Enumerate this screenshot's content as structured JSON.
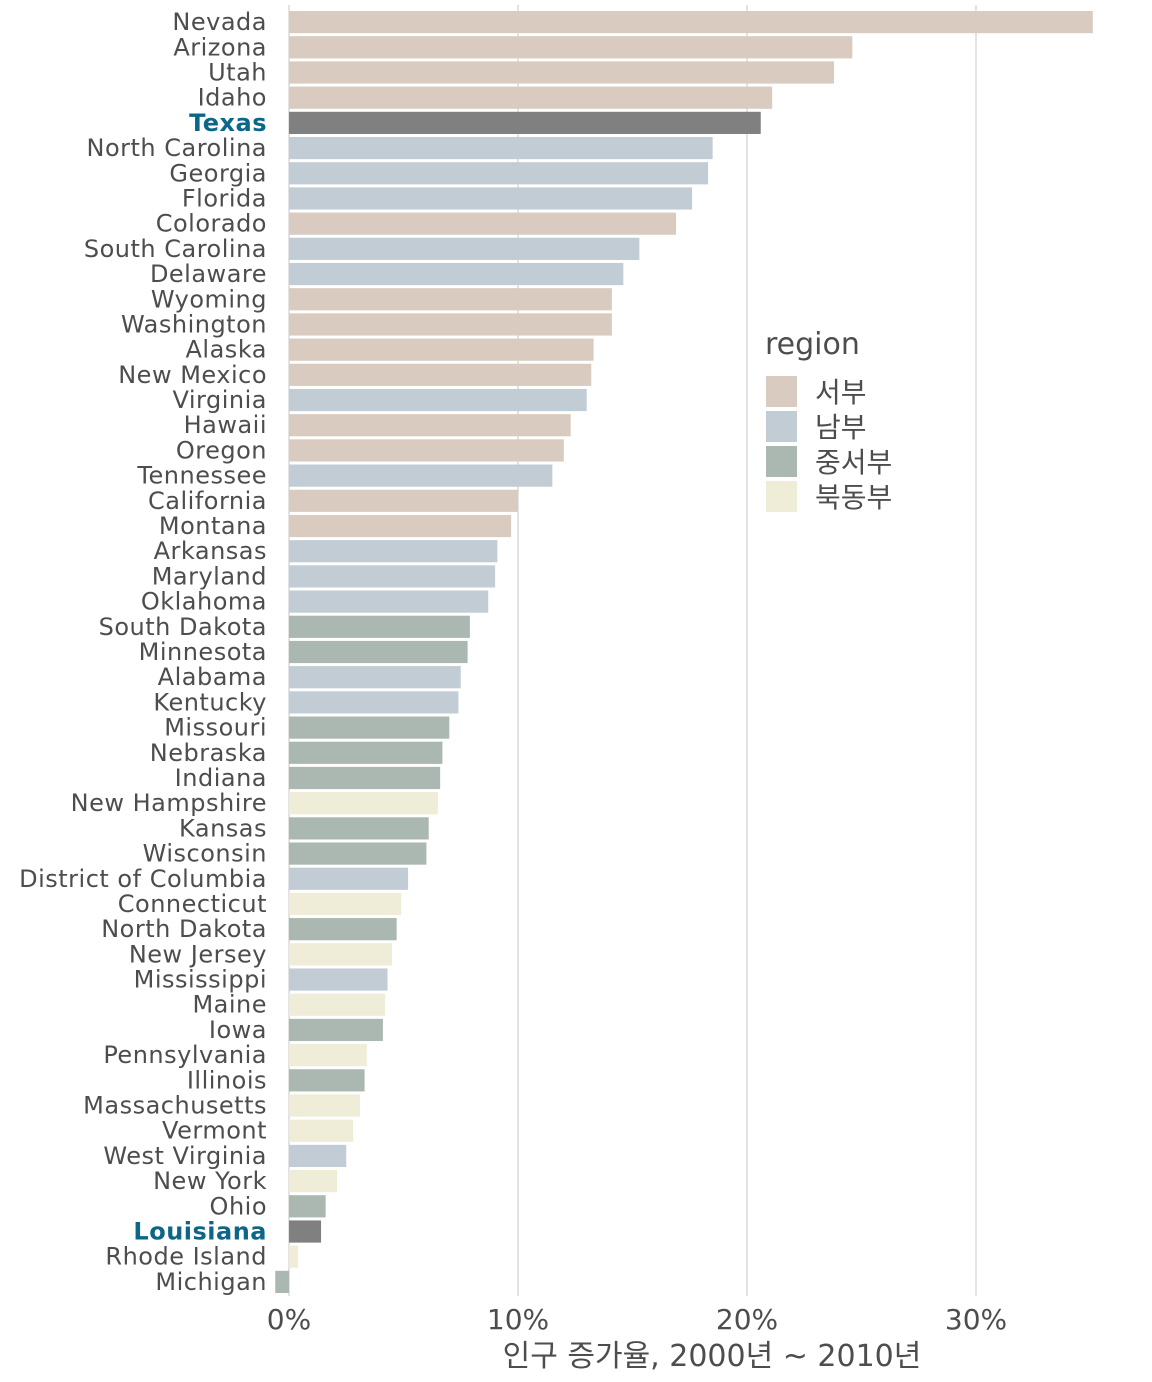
{
  "chart_data": {
    "type": "bar",
    "orientation": "horizontal",
    "xlabel": "인구 증가율, 2000년 ~ 2010년",
    "ylabel": "",
    "xlim": [
      -0.5,
      37
    ],
    "xticks": [
      0,
      10,
      20,
      30
    ],
    "xtick_labels": [
      "0%",
      "10%",
      "20%",
      "30%"
    ],
    "grid": "vertical major lines",
    "legend": {
      "title": "region",
      "placement": "right",
      "entries": [
        {
          "key": "west",
          "label": "서부",
          "color": "#d9cbbf"
        },
        {
          "key": "south",
          "label": "남부",
          "color": "#c2ccd4"
        },
        {
          "key": "midwest",
          "label": "중서부",
          "color": "#aab8b1"
        },
        {
          "key": "northeast",
          "label": "북동부",
          "color": "#efecd8"
        }
      ]
    },
    "highlight_color": "#808080",
    "highlight_label_color": "#0b6688",
    "bars": [
      {
        "state": "Nevada",
        "value": 35.1,
        "region": "west"
      },
      {
        "state": "Arizona",
        "value": 24.6,
        "region": "west"
      },
      {
        "state": "Utah",
        "value": 23.8,
        "region": "west"
      },
      {
        "state": "Idaho",
        "value": 21.1,
        "region": "west"
      },
      {
        "state": "Texas",
        "value": 20.6,
        "region": "south",
        "highlight": true
      },
      {
        "state": "North Carolina",
        "value": 18.5,
        "region": "south"
      },
      {
        "state": "Georgia",
        "value": 18.3,
        "region": "south"
      },
      {
        "state": "Florida",
        "value": 17.6,
        "region": "south"
      },
      {
        "state": "Colorado",
        "value": 16.9,
        "region": "west"
      },
      {
        "state": "South Carolina",
        "value": 15.3,
        "region": "south"
      },
      {
        "state": "Delaware",
        "value": 14.6,
        "region": "south"
      },
      {
        "state": "Wyoming",
        "value": 14.1,
        "region": "west"
      },
      {
        "state": "Washington",
        "value": 14.1,
        "region": "west"
      },
      {
        "state": "Alaska",
        "value": 13.3,
        "region": "west"
      },
      {
        "state": "New Mexico",
        "value": 13.2,
        "region": "west"
      },
      {
        "state": "Virginia",
        "value": 13.0,
        "region": "south"
      },
      {
        "state": "Hawaii",
        "value": 12.3,
        "region": "west"
      },
      {
        "state": "Oregon",
        "value": 12.0,
        "region": "west"
      },
      {
        "state": "Tennessee",
        "value": 11.5,
        "region": "south"
      },
      {
        "state": "California",
        "value": 10.0,
        "region": "west"
      },
      {
        "state": "Montana",
        "value": 9.7,
        "region": "west"
      },
      {
        "state": "Arkansas",
        "value": 9.1,
        "region": "south"
      },
      {
        "state": "Maryland",
        "value": 9.0,
        "region": "south"
      },
      {
        "state": "Oklahoma",
        "value": 8.7,
        "region": "south"
      },
      {
        "state": "South Dakota",
        "value": 7.9,
        "region": "midwest"
      },
      {
        "state": "Minnesota",
        "value": 7.8,
        "region": "midwest"
      },
      {
        "state": "Alabama",
        "value": 7.5,
        "region": "south"
      },
      {
        "state": "Kentucky",
        "value": 7.4,
        "region": "south"
      },
      {
        "state": "Missouri",
        "value": 7.0,
        "region": "midwest"
      },
      {
        "state": "Nebraska",
        "value": 6.7,
        "region": "midwest"
      },
      {
        "state": "Indiana",
        "value": 6.6,
        "region": "midwest"
      },
      {
        "state": "New Hampshire",
        "value": 6.5,
        "region": "northeast"
      },
      {
        "state": "Kansas",
        "value": 6.1,
        "region": "midwest"
      },
      {
        "state": "Wisconsin",
        "value": 6.0,
        "region": "midwest"
      },
      {
        "state": "District of Columbia",
        "value": 5.2,
        "region": "south"
      },
      {
        "state": "Connecticut",
        "value": 4.9,
        "region": "northeast"
      },
      {
        "state": "North Dakota",
        "value": 4.7,
        "region": "midwest"
      },
      {
        "state": "New Jersey",
        "value": 4.5,
        "region": "northeast"
      },
      {
        "state": "Mississippi",
        "value": 4.3,
        "region": "south"
      },
      {
        "state": "Maine",
        "value": 4.2,
        "region": "northeast"
      },
      {
        "state": "Iowa",
        "value": 4.1,
        "region": "midwest"
      },
      {
        "state": "Pennsylvania",
        "value": 3.4,
        "region": "northeast"
      },
      {
        "state": "Illinois",
        "value": 3.3,
        "region": "midwest"
      },
      {
        "state": "Massachusetts",
        "value": 3.1,
        "region": "northeast"
      },
      {
        "state": "Vermont",
        "value": 2.8,
        "region": "northeast"
      },
      {
        "state": "West Virginia",
        "value": 2.5,
        "region": "south"
      },
      {
        "state": "New York",
        "value": 2.1,
        "region": "northeast"
      },
      {
        "state": "Ohio",
        "value": 1.6,
        "region": "midwest"
      },
      {
        "state": "Louisiana",
        "value": 1.4,
        "region": "south",
        "highlight": true
      },
      {
        "state": "Rhode Island",
        "value": 0.4,
        "region": "northeast"
      },
      {
        "state": "Michigan",
        "value": -0.6,
        "region": "midwest"
      }
    ]
  }
}
